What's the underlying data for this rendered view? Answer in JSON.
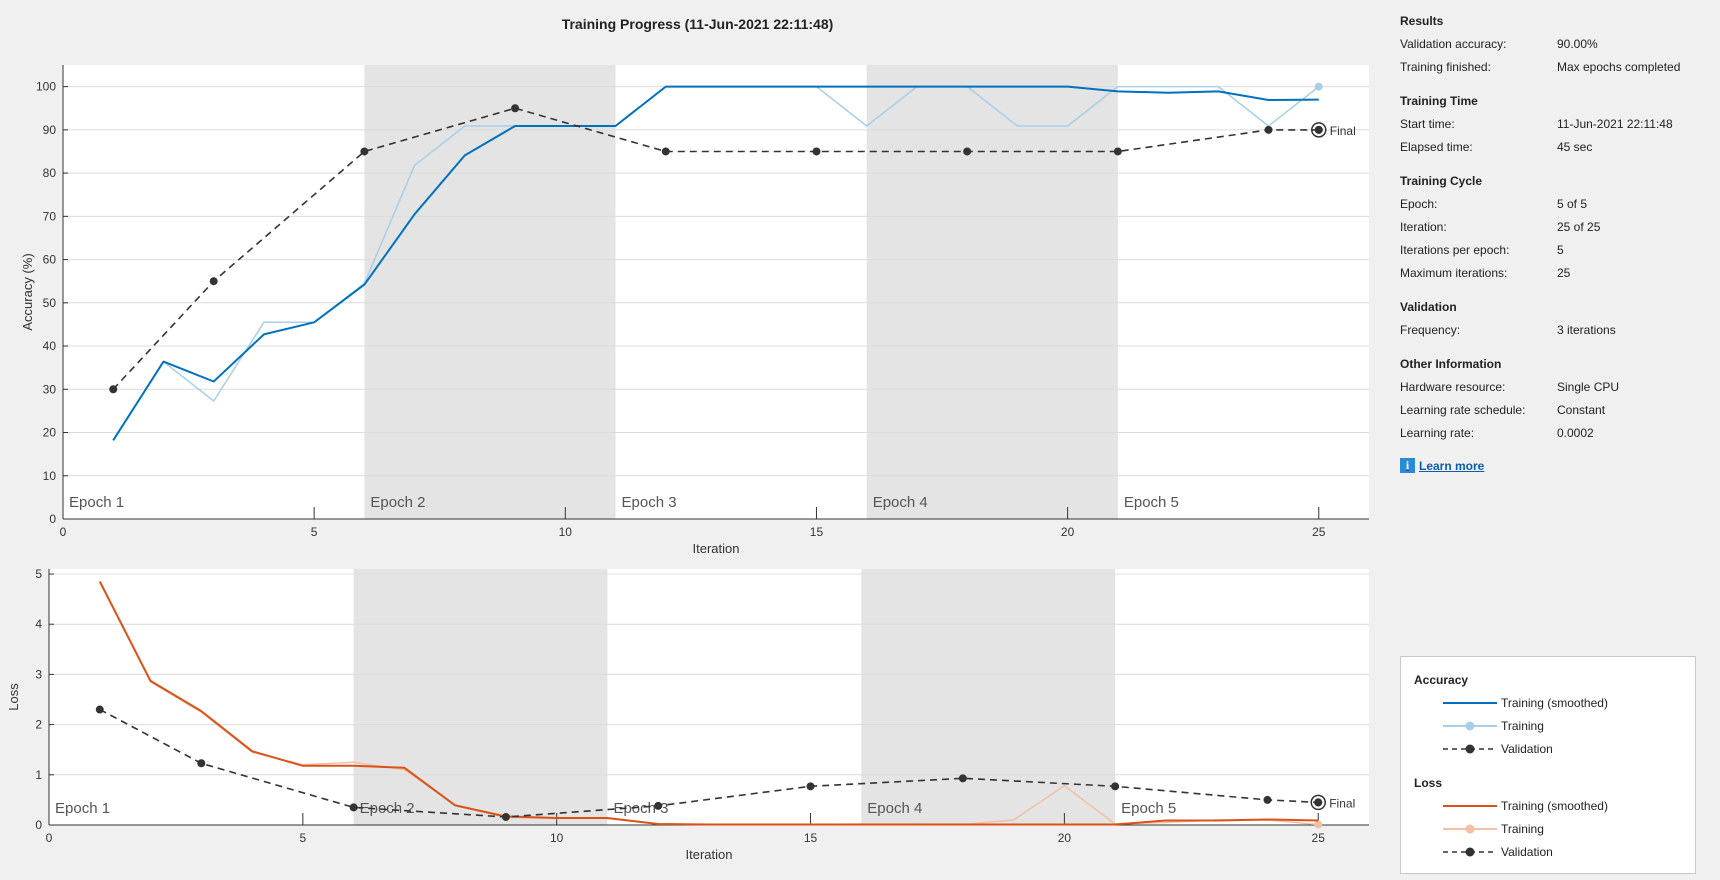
{
  "title": "Training Progress (11-Jun-2021 22:11:48)",
  "colors": {
    "accuracy_smoothed": "#0072bd",
    "accuracy_training": "#a9cfe8",
    "loss_smoothed": "#d95319",
    "loss_training": "#f3c0a6",
    "validation": "#333333",
    "epoch_shade": "#e4e4e4",
    "grid": "#dcdcdc"
  },
  "chart_data": [
    {
      "type": "line",
      "name": "accuracy",
      "xlabel": "Iteration",
      "ylabel": "Accuracy (%)",
      "xlim": [
        0,
        26
      ],
      "ylim": [
        0,
        105
      ],
      "xticks": [
        0,
        5,
        10,
        15,
        20,
        25
      ],
      "yticks": [
        0,
        10,
        20,
        30,
        40,
        50,
        60,
        70,
        80,
        90,
        100
      ],
      "grid": true,
      "epochs": [
        {
          "label": "Epoch 1",
          "start": 0,
          "end": 6,
          "shaded": false
        },
        {
          "label": "Epoch 2",
          "start": 6,
          "end": 11,
          "shaded": true
        },
        {
          "label": "Epoch 3",
          "start": 11,
          "end": 16,
          "shaded": false
        },
        {
          "label": "Epoch 4",
          "start": 16,
          "end": 21,
          "shaded": true
        },
        {
          "label": "Epoch 5",
          "start": 21,
          "end": 26,
          "shaded": false
        }
      ],
      "series": [
        {
          "name": "Training",
          "style": "training",
          "x": [
            1,
            2,
            3,
            4,
            5,
            6,
            7,
            8,
            9,
            10,
            11,
            12,
            13,
            14,
            15,
            16,
            17,
            18,
            19,
            20,
            21,
            22,
            23,
            24,
            25
          ],
          "y": [
            18.2,
            36.4,
            27.3,
            45.5,
            45.5,
            54.5,
            81.8,
            90.9,
            90.9,
            90.9,
            90.9,
            100,
            100,
            100,
            100,
            90.9,
            100,
            100,
            90.9,
            90.9,
            100,
            100,
            100,
            90.9,
            100
          ],
          "end_marker": true
        },
        {
          "name": "Training (smoothed)",
          "style": "smoothed",
          "x": [
            1,
            2,
            3,
            4,
            5,
            6,
            7,
            8,
            9,
            10,
            11,
            12,
            13,
            14,
            15,
            16,
            17,
            18,
            19,
            20,
            21,
            22,
            23,
            24,
            25
          ],
          "y": [
            18.2,
            36.4,
            31.8,
            42.7,
            45.5,
            54.2,
            70.5,
            84.1,
            90.9,
            90.9,
            90.9,
            100,
            100,
            100,
            100,
            100,
            100,
            100,
            100,
            100,
            98.9,
            98.6,
            98.9,
            96.9,
            97
          ]
        },
        {
          "name": "Validation",
          "style": "validation",
          "x": [
            1,
            3,
            6,
            9,
            12,
            15,
            18,
            21,
            24,
            25
          ],
          "y": [
            30,
            55,
            85,
            95,
            85,
            85,
            85,
            85,
            90,
            90
          ],
          "final_marker": true
        }
      ],
      "annotations": [
        "Final"
      ]
    },
    {
      "type": "line",
      "name": "loss",
      "xlabel": "Iteration",
      "ylabel": "Loss",
      "xlim": [
        0,
        26
      ],
      "ylim": [
        0,
        5.1
      ],
      "xticks": [
        0,
        5,
        10,
        15,
        20,
        25
      ],
      "yticks": [
        0,
        1,
        2,
        3,
        4,
        5
      ],
      "grid": true,
      "epochs": [
        {
          "label": "Epoch 1",
          "start": 0,
          "end": 6,
          "shaded": false
        },
        {
          "label": "Epoch 2",
          "start": 6,
          "end": 11,
          "shaded": true
        },
        {
          "label": "Epoch 3",
          "start": 11,
          "end": 16,
          "shaded": false
        },
        {
          "label": "Epoch 4",
          "start": 16,
          "end": 21,
          "shaded": true
        },
        {
          "label": "Epoch 5",
          "start": 21,
          "end": 26,
          "shaded": false
        }
      ],
      "series": [
        {
          "name": "Training",
          "style": "training",
          "x": [
            1,
            2,
            3,
            4,
            5,
            6,
            7,
            8,
            9,
            10,
            11,
            12,
            13,
            14,
            15,
            16,
            17,
            18,
            19,
            20,
            21,
            22,
            23,
            24,
            25
          ],
          "y": [
            4.85,
            2.85,
            2.25,
            1.45,
            1.2,
            1.25,
            1.1,
            0.4,
            0.15,
            0.13,
            0.13,
            0.02,
            0.01,
            0.01,
            0.01,
            0.02,
            0.02,
            0.01,
            0.1,
            0.78,
            0.02,
            0.05,
            0.1,
            0.1,
            0.01
          ],
          "end_marker": true
        },
        {
          "name": "Training (smoothed)",
          "style": "smoothed",
          "x": [
            1,
            2,
            3,
            4,
            5,
            6,
            7,
            8,
            9,
            10,
            11,
            12,
            13,
            14,
            15,
            16,
            17,
            18,
            19,
            20,
            21,
            22,
            23,
            24,
            25
          ],
          "y": [
            4.85,
            2.87,
            2.27,
            1.47,
            1.18,
            1.18,
            1.14,
            0.39,
            0.17,
            0.14,
            0.14,
            0.02,
            0.01,
            0.01,
            0.01,
            0.01,
            0.01,
            0.01,
            0.01,
            0.01,
            0.01,
            0.09,
            0.09,
            0.11,
            0.09
          ]
        },
        {
          "name": "Validation",
          "style": "validation",
          "x": [
            1,
            3,
            6,
            9,
            12,
            15,
            18,
            21,
            24,
            25
          ],
          "y": [
            2.3,
            1.23,
            0.35,
            0.16,
            0.38,
            0.77,
            0.93,
            0.77,
            0.5,
            0.45
          ],
          "final_marker": true
        }
      ],
      "annotations": [
        "Final"
      ]
    }
  ],
  "info_panel": {
    "sections": [
      {
        "title": "Results",
        "rows": [
          {
            "label": "Validation accuracy:",
            "value": "90.00%"
          },
          {
            "label": "Training finished:",
            "value": "Max epochs completed"
          }
        ]
      },
      {
        "title": "Training Time",
        "rows": [
          {
            "label": "Start time:",
            "value": "11-Jun-2021 22:11:48"
          },
          {
            "label": "Elapsed time:",
            "value": "45 sec"
          }
        ]
      },
      {
        "title": "Training Cycle",
        "rows": [
          {
            "label": "Epoch:",
            "value": "5 of 5"
          },
          {
            "label": "Iteration:",
            "value": "25 of 25"
          },
          {
            "label": "Iterations per epoch:",
            "value": "5"
          },
          {
            "label": "Maximum iterations:",
            "value": "25"
          }
        ]
      },
      {
        "title": "Validation",
        "rows": [
          {
            "label": "Frequency:",
            "value": "3 iterations"
          }
        ]
      },
      {
        "title": "Other Information",
        "rows": [
          {
            "label": "Hardware resource:",
            "value": "Single CPU"
          },
          {
            "label": "Learning rate schedule:",
            "value": "Constant"
          },
          {
            "label": "Learning rate:",
            "value": "0.0002"
          }
        ]
      }
    ],
    "learn_more": "Learn more",
    "info_icon": "info-icon"
  },
  "legend": {
    "groups": [
      {
        "title": "Accuracy",
        "items": [
          {
            "label": "Training (smoothed)",
            "style": "accuracy_smoothed"
          },
          {
            "label": "Training",
            "style": "accuracy_training"
          },
          {
            "label": "Validation",
            "style": "validation"
          }
        ]
      },
      {
        "title": "Loss",
        "items": [
          {
            "label": "Training (smoothed)",
            "style": "loss_smoothed"
          },
          {
            "label": "Training",
            "style": "loss_training"
          },
          {
            "label": "Validation",
            "style": "validation"
          }
        ]
      }
    ]
  }
}
